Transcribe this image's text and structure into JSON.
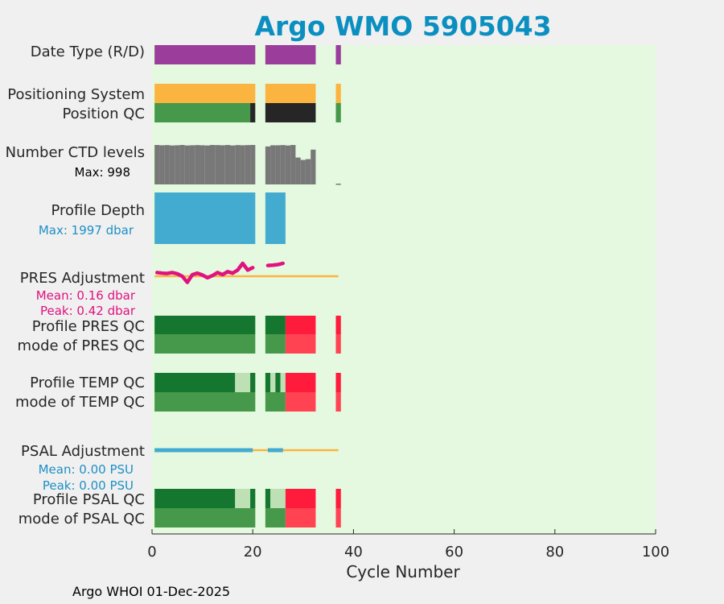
{
  "chart_data": {
    "type": "bar",
    "title": "Argo WMO 5905043",
    "xlabel": "Cycle Number",
    "xlim": [
      0,
      100
    ],
    "xticks": [
      "0",
      "20",
      "40",
      "60",
      "80",
      "100"
    ],
    "colors": {
      "background": "#e5f9e0",
      "date_type": "#9b3d9b",
      "positioning": "#fbb43f",
      "qc_good": "#46984a",
      "qc_good_dark": "#15772f",
      "qc_probably_good": "#bde0b5",
      "qc_bad_bright": "#ff1b3b",
      "qc_bad": "#ff4353",
      "qc_missing": "#262626",
      "ctd_levels": "#787878",
      "profile_depth": "#44abd0",
      "pres_adjustment": "#e0127f",
      "psal_adjustment": "#44abd0",
      "reference_line": "#fbb43f"
    },
    "rows": {
      "date_type": {
        "label": "Date Type (R/D)",
        "segments": [
          {
            "start": 0.5,
            "end": 20.5,
            "type": "date_type"
          },
          {
            "start": 22.5,
            "end": 32.5,
            "type": "date_type"
          },
          {
            "start": 36.5,
            "end": 37.5,
            "type": "date_type"
          }
        ]
      },
      "positioning_system": {
        "label": "Positioning System",
        "segments": [
          {
            "start": 0.5,
            "end": 20.5,
            "type": "positioning"
          },
          {
            "start": 22.5,
            "end": 32.5,
            "type": "positioning"
          },
          {
            "start": 36.5,
            "end": 37.5,
            "type": "positioning"
          }
        ]
      },
      "position_qc": {
        "label": "Position QC",
        "segments": [
          {
            "start": 0.5,
            "end": 19.5,
            "type": "qc_good"
          },
          {
            "start": 19.5,
            "end": 20.5,
            "type": "qc_missing"
          },
          {
            "start": 22.5,
            "end": 32.5,
            "type": "qc_missing"
          },
          {
            "start": 36.5,
            "end": 37.5,
            "type": "qc_good"
          }
        ]
      },
      "ctd_levels": {
        "label": "Number CTD levels",
        "max_label": "Max: 998",
        "max": 998,
        "cycles": [
          1,
          2,
          3,
          4,
          5,
          6,
          7,
          8,
          9,
          10,
          11,
          12,
          13,
          14,
          15,
          16,
          17,
          18,
          19,
          20,
          23,
          24,
          25,
          26,
          27,
          28,
          29,
          30,
          31,
          32,
          37
        ],
        "values": [
          998,
          990,
          995,
          985,
          990,
          998,
          985,
          990,
          995,
          990,
          985,
          998,
          995,
          990,
          998,
          985,
          995,
          990,
          995,
          998,
          960,
          990,
          990,
          995,
          985,
          998,
          680,
          620,
          640,
          880,
          20
        ]
      },
      "profile_depth": {
        "label": "Profile Depth",
        "max_label": "Max: 1997 dbar",
        "max": 1997,
        "segments": [
          {
            "start": 0.5,
            "end": 20.5,
            "type": "profile_depth"
          },
          {
            "start": 22.5,
            "end": 26.5,
            "type": "profile_depth"
          }
        ]
      },
      "pres_adjustment": {
        "label": "PRES Adjustment",
        "mean_label": "Mean: 0.16 dbar",
        "peak_label": "Peak: 0.42 dbar",
        "reference_span": [
          0.5,
          37
        ],
        "min": 0,
        "peak": 0.42,
        "cycles": [
          1,
          2,
          3,
          4,
          5,
          6,
          7,
          8,
          9,
          10,
          11,
          12,
          13,
          14,
          15,
          16,
          17,
          18,
          19,
          20,
          23,
          24,
          25,
          26
        ],
        "values": [
          0.12,
          0.1,
          0.09,
          0.12,
          0.08,
          0.0,
          -0.2,
          0.05,
          0.1,
          0.04,
          -0.05,
          0.02,
          0.12,
          0.05,
          0.15,
          0.1,
          0.2,
          0.42,
          0.2,
          0.28,
          0.35,
          0.36,
          0.38,
          0.42
        ]
      },
      "profile_pres_qc": {
        "label": "Profile PRES QC",
        "segments": [
          {
            "start": 0.5,
            "end": 20.5,
            "type": "qc_good_dark"
          },
          {
            "start": 22.5,
            "end": 26.5,
            "type": "qc_good_dark"
          },
          {
            "start": 26.5,
            "end": 32.5,
            "type": "qc_bad_bright"
          },
          {
            "start": 36.5,
            "end": 37.5,
            "type": "qc_bad_bright"
          }
        ]
      },
      "mode_pres_qc": {
        "label": "mode of PRES QC",
        "segments": [
          {
            "start": 0.5,
            "end": 20.5,
            "type": "qc_good"
          },
          {
            "start": 22.5,
            "end": 26.5,
            "type": "qc_good"
          },
          {
            "start": 26.5,
            "end": 32.5,
            "type": "qc_bad"
          },
          {
            "start": 36.5,
            "end": 37.5,
            "type": "qc_bad"
          }
        ]
      },
      "profile_temp_qc": {
        "label": "Profile TEMP QC",
        "segments": [
          {
            "start": 0.5,
            "end": 16.5,
            "type": "qc_good_dark"
          },
          {
            "start": 16.5,
            "end": 19.5,
            "type": "qc_probably_good"
          },
          {
            "start": 19.5,
            "end": 20.5,
            "type": "qc_good_dark"
          },
          {
            "start": 22.5,
            "end": 23.5,
            "type": "qc_good_dark"
          },
          {
            "start": 23.5,
            "end": 24.5,
            "type": "qc_probably_good"
          },
          {
            "start": 24.5,
            "end": 25.5,
            "type": "qc_good_dark"
          },
          {
            "start": 25.5,
            "end": 26.5,
            "type": "qc_probably_good"
          },
          {
            "start": 26.5,
            "end": 32.5,
            "type": "qc_bad_bright"
          },
          {
            "start": 36.5,
            "end": 37.5,
            "type": "qc_bad_bright"
          }
        ]
      },
      "mode_temp_qc": {
        "label": "mode of TEMP QC",
        "segments": [
          {
            "start": 0.5,
            "end": 20.5,
            "type": "qc_good"
          },
          {
            "start": 22.5,
            "end": 26.5,
            "type": "qc_good"
          },
          {
            "start": 26.5,
            "end": 32.5,
            "type": "qc_bad"
          },
          {
            "start": 36.5,
            "end": 37.5,
            "type": "qc_bad"
          }
        ]
      },
      "psal_adjustment": {
        "label": "PSAL Adjustment",
        "mean_label": "Mean: 0.00 PSU",
        "peak_label": "Peak: 0.00 PSU",
        "reference_span": [
          0.5,
          37
        ],
        "segments": [
          {
            "start": 0.5,
            "end": 20.0,
            "type": "psal_adjustment"
          },
          {
            "start": 23.0,
            "end": 26.0,
            "type": "psal_adjustment"
          }
        ]
      },
      "profile_psal_qc": {
        "label": "Profile PSAL QC",
        "segments": [
          {
            "start": 0.5,
            "end": 16.5,
            "type": "qc_good_dark"
          },
          {
            "start": 16.5,
            "end": 19.5,
            "type": "qc_probably_good"
          },
          {
            "start": 19.5,
            "end": 20.5,
            "type": "qc_good_dark"
          },
          {
            "start": 22.5,
            "end": 23.5,
            "type": "qc_good_dark"
          },
          {
            "start": 23.5,
            "end": 26.5,
            "type": "qc_probably_good"
          },
          {
            "start": 26.5,
            "end": 32.5,
            "type": "qc_bad_bright"
          },
          {
            "start": 36.5,
            "end": 37.5,
            "type": "qc_bad_bright"
          }
        ]
      },
      "mode_psal_qc": {
        "label": "mode of PSAL QC",
        "segments": [
          {
            "start": 0.5,
            "end": 20.5,
            "type": "qc_good"
          },
          {
            "start": 22.5,
            "end": 26.5,
            "type": "qc_good"
          },
          {
            "start": 26.5,
            "end": 32.5,
            "type": "qc_bad"
          },
          {
            "start": 36.5,
            "end": 37.5,
            "type": "qc_bad"
          }
        ]
      }
    }
  },
  "footer": "Argo WHOI 01-Dec-2025"
}
